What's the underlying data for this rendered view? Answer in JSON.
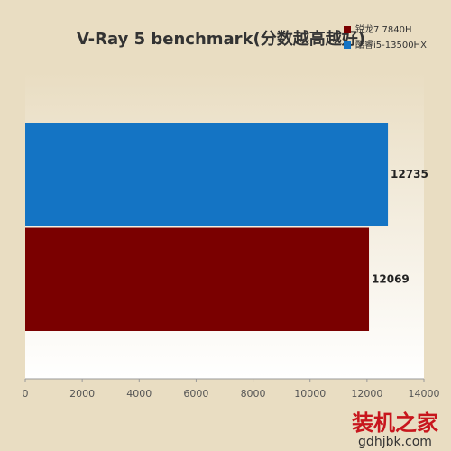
{
  "chart_data": {
    "type": "bar",
    "orientation": "horizontal",
    "title": "V-Ray 5 benchmark(分数越高越好)",
    "categories": [
      null
    ],
    "series": [
      {
        "name": "锐龙7 7840H",
        "color": "#7a0000",
        "values": [
          12069
        ]
      },
      {
        "name": "酷睿i5-13500HX",
        "color": "#1474c4",
        "values": [
          12735
        ]
      }
    ],
    "xlim": [
      0,
      14000
    ],
    "xticks": [
      0,
      2000,
      4000,
      6000,
      8000,
      10000,
      12000,
      14000
    ],
    "legend": "top-right",
    "grid": false
  },
  "watermark": {
    "name": "装机之家",
    "url": "gdhjbk.com"
  }
}
